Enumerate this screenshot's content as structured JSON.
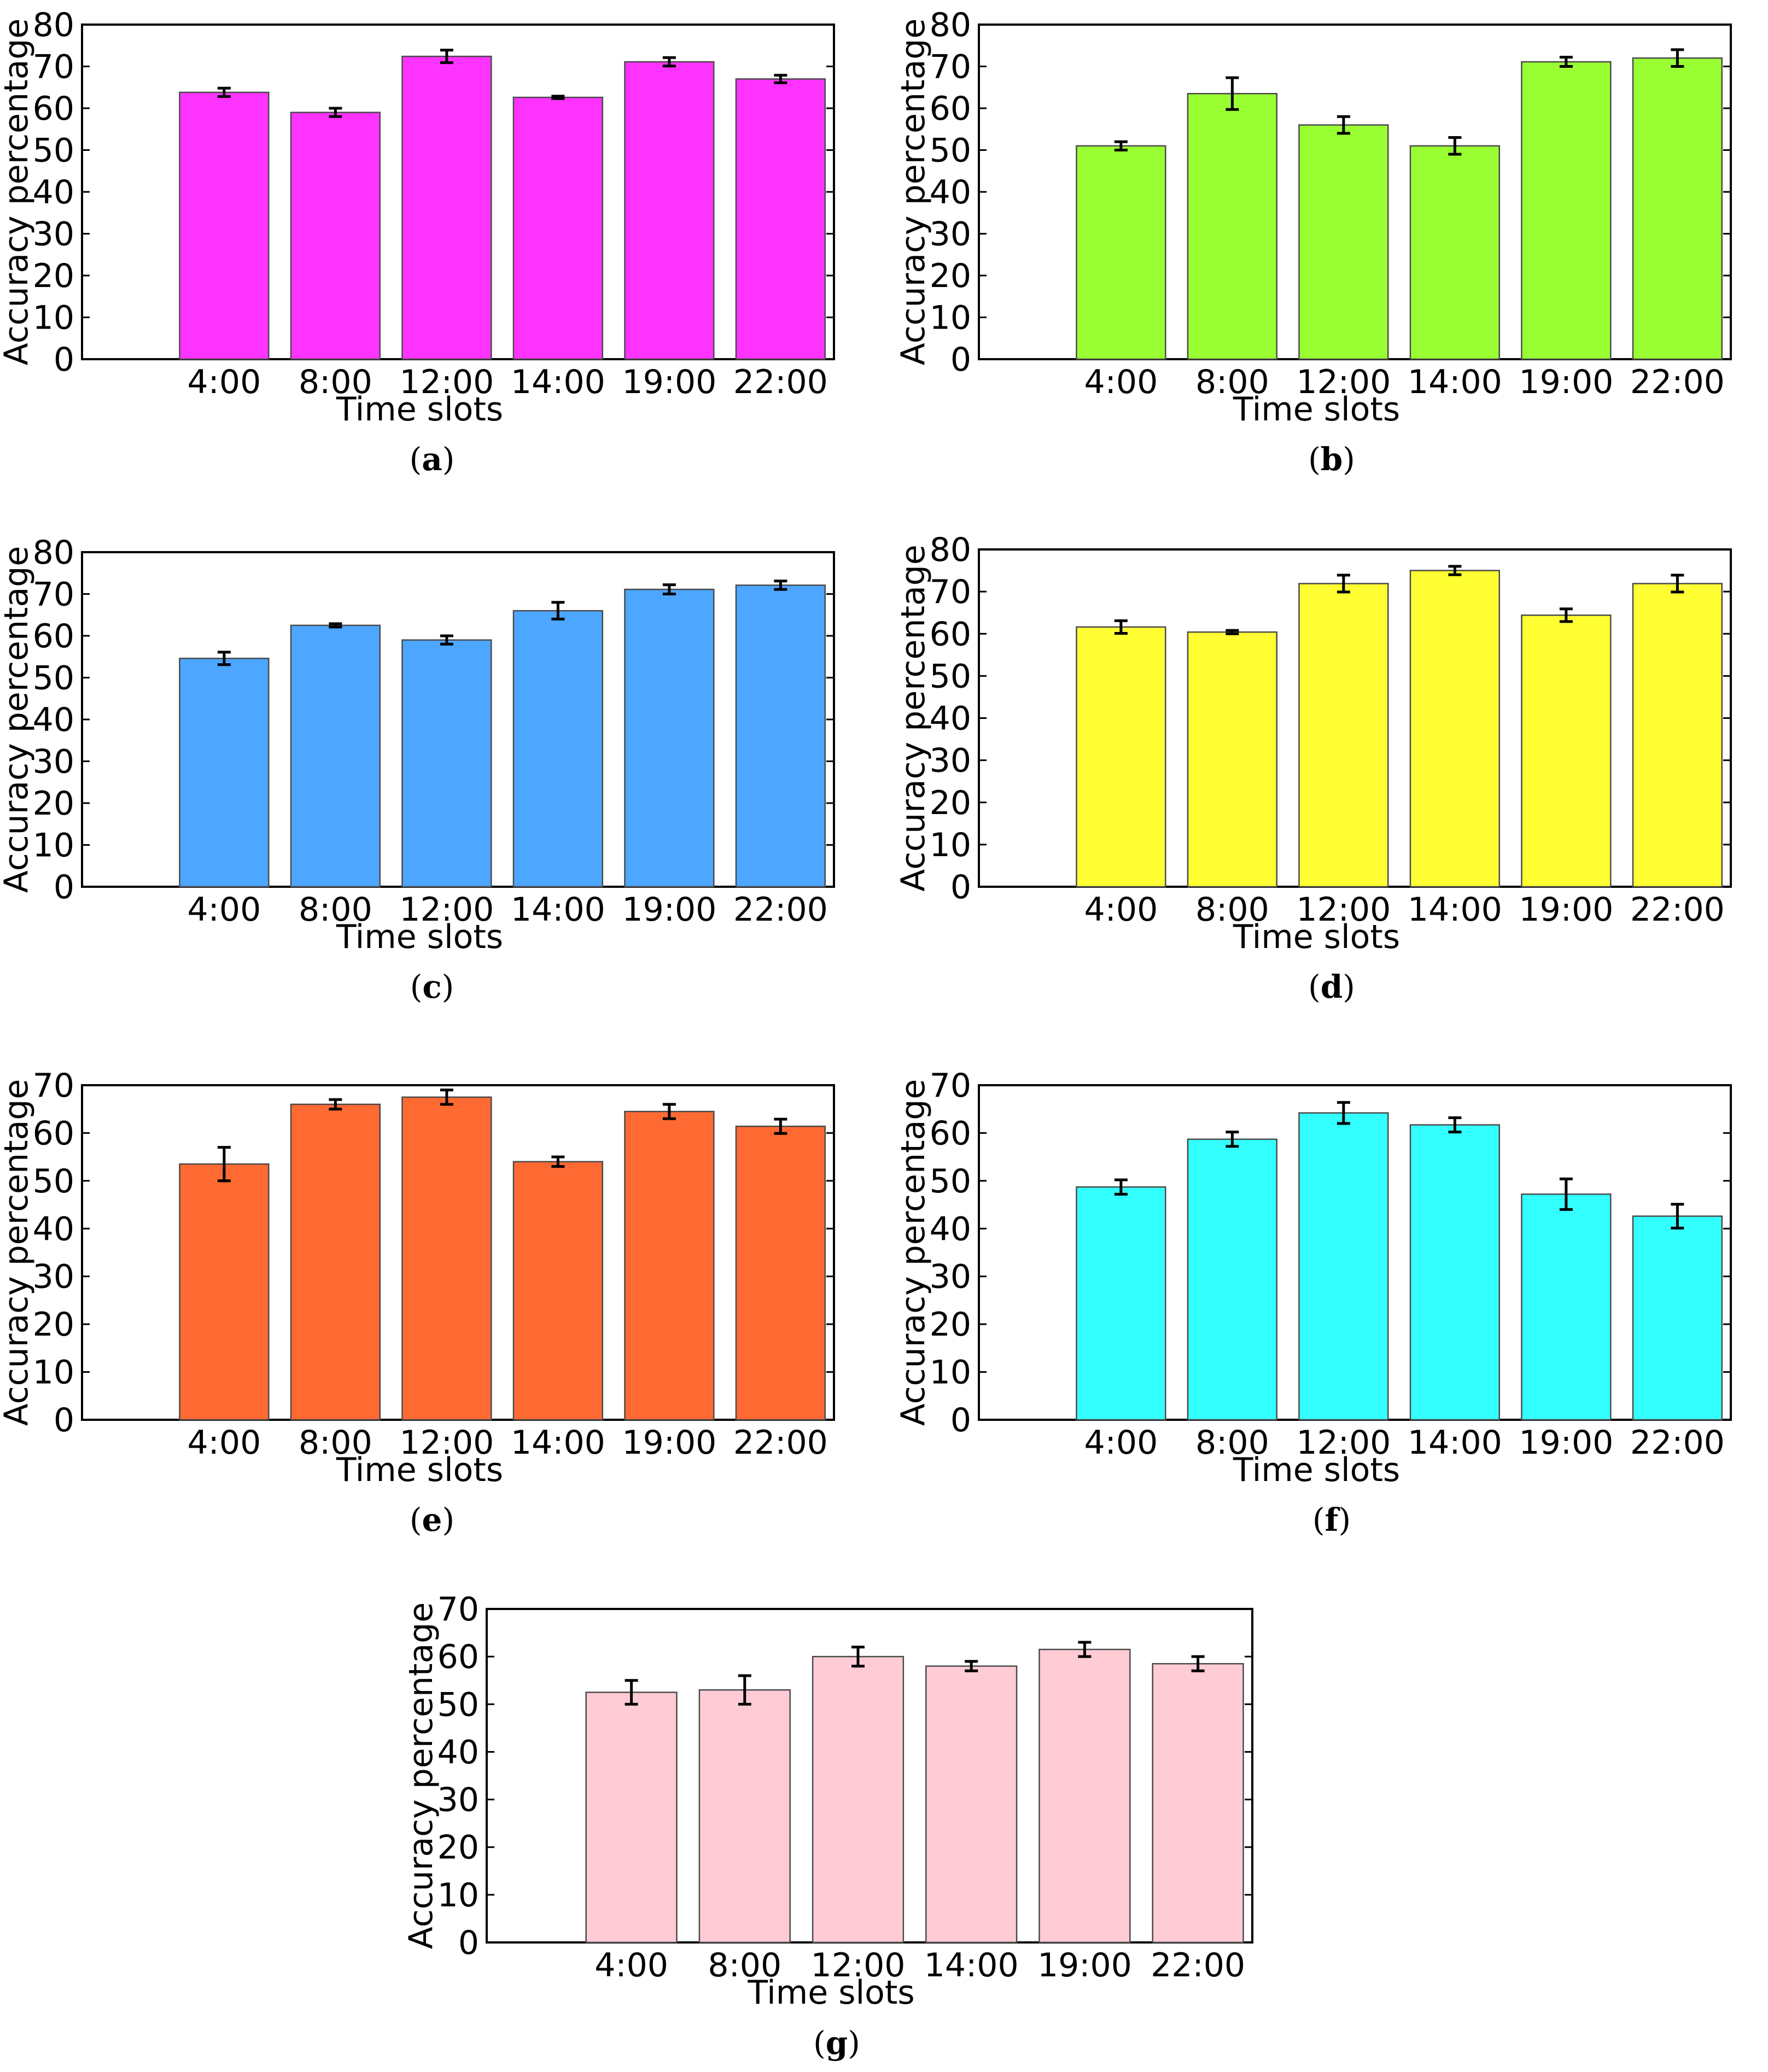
{
  "figure": {
    "label_open": "(",
    "label_close": ")"
  },
  "chart_data": [
    {
      "panel": "a",
      "type": "bar",
      "color": "#ff33ff",
      "categories": [
        "4:00",
        "8:00",
        "12:00",
        "14:00",
        "19:00",
        "22:00"
      ],
      "values": [
        63.8,
        59.0,
        72.4,
        62.6,
        71.1,
        67.0
      ],
      "errors": [
        1.0,
        1.0,
        1.5,
        0.3,
        1.0,
        0.9
      ],
      "xlabel": "Time slots",
      "ylabel": "Accuracy percentage",
      "ylim": [
        0,
        80
      ],
      "yticks": [
        0,
        10,
        20,
        30,
        40,
        50,
        60,
        70,
        80
      ]
    },
    {
      "panel": "b",
      "type": "bar",
      "color": "#99ff33",
      "categories": [
        "4:00",
        "8:00",
        "12:00",
        "14:00",
        "19:00",
        "22:00"
      ],
      "values": [
        51.0,
        63.5,
        56.0,
        51.0,
        71.1,
        72.0
      ],
      "errors": [
        1.0,
        3.8,
        2.0,
        2.0,
        1.1,
        2.0
      ],
      "xlabel": "Time slots",
      "ylabel": "Accuracy percentage",
      "ylim": [
        0,
        80
      ],
      "yticks": [
        0,
        10,
        20,
        30,
        40,
        50,
        60,
        70,
        80
      ]
    },
    {
      "panel": "c",
      "type": "bar",
      "color": "#4da6ff",
      "categories": [
        "4:00",
        "8:00",
        "12:00",
        "14:00",
        "19:00",
        "22:00"
      ],
      "values": [
        54.6,
        62.5,
        59.0,
        66.0,
        71.1,
        72.1
      ],
      "errors": [
        1.5,
        0.4,
        1.0,
        2.0,
        1.1,
        1.0
      ],
      "xlabel": "Time slots",
      "ylabel": "Accuracy percentage",
      "ylim": [
        0,
        80
      ],
      "yticks": [
        0,
        10,
        20,
        30,
        40,
        50,
        60,
        70,
        80
      ]
    },
    {
      "panel": "d",
      "type": "bar",
      "color": "#ffff33",
      "categories": [
        "4:00",
        "8:00",
        "12:00",
        "14:00",
        "19:00",
        "22:00"
      ],
      "values": [
        61.6,
        60.4,
        71.9,
        75.0,
        64.4,
        71.9
      ],
      "errors": [
        1.5,
        0.4,
        2.0,
        1.0,
        1.5,
        2.0
      ],
      "xlabel": "Time slots",
      "ylabel": "Accuracy percentage",
      "ylim": [
        0,
        80
      ],
      "yticks": [
        0,
        10,
        20,
        30,
        40,
        50,
        60,
        70,
        80
      ]
    },
    {
      "panel": "e",
      "type": "bar",
      "color": "#ff6a33",
      "categories": [
        "4:00",
        "8:00",
        "12:00",
        "14:00",
        "19:00",
        "22:00"
      ],
      "values": [
        53.5,
        66.0,
        67.5,
        54.0,
        64.5,
        61.4
      ],
      "errors": [
        3.5,
        1.0,
        1.5,
        1.0,
        1.5,
        1.5
      ],
      "xlabel": "Time slots",
      "ylabel": "Accuracy percentage",
      "ylim": [
        0,
        70
      ],
      "yticks": [
        0,
        10,
        20,
        30,
        40,
        50,
        60,
        70
      ]
    },
    {
      "panel": "f",
      "type": "bar",
      "color": "#33ffff",
      "categories": [
        "4:00",
        "8:00",
        "12:00",
        "14:00",
        "19:00",
        "22:00"
      ],
      "values": [
        48.7,
        58.7,
        64.2,
        61.7,
        47.2,
        42.6
      ],
      "errors": [
        1.5,
        1.5,
        2.2,
        1.5,
        3.2,
        2.5
      ],
      "xlabel": "Time slots",
      "ylabel": "Accuracy percentage",
      "ylim": [
        0,
        70
      ],
      "yticks": [
        0,
        10,
        20,
        30,
        40,
        50,
        60,
        70
      ]
    },
    {
      "panel": "g",
      "type": "bar",
      "color": "#ffccd5",
      "categories": [
        "4:00",
        "8:00",
        "12:00",
        "14:00",
        "19:00",
        "22:00"
      ],
      "values": [
        52.5,
        53.0,
        60.0,
        58.0,
        61.5,
        58.5
      ],
      "errors": [
        2.5,
        3.0,
        2.0,
        1.0,
        1.5,
        1.5
      ],
      "xlabel": "Time slots",
      "ylabel": "Accuracy percentage",
      "ylim": [
        0,
        70
      ],
      "yticks": [
        0,
        10,
        20,
        30,
        40,
        50,
        60,
        70
      ]
    }
  ]
}
